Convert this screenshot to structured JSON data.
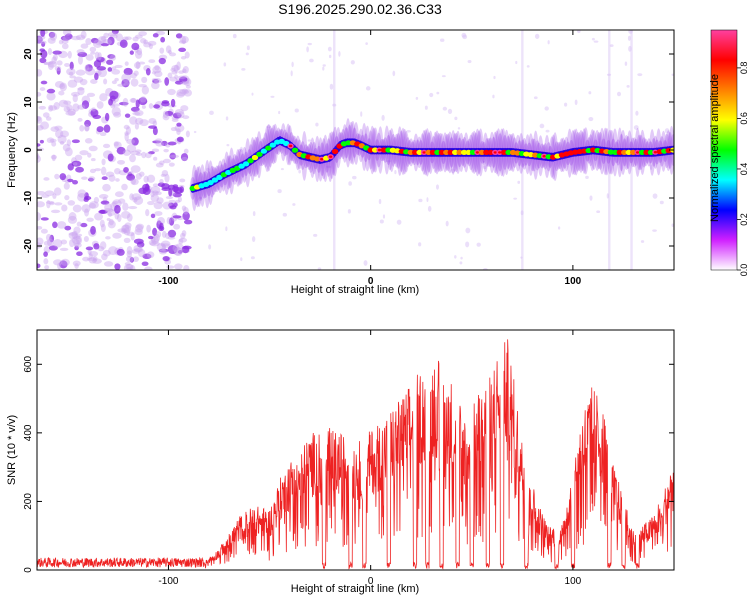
{
  "title": "S196.2025.290.02.36.C33",
  "chart_data": [
    {
      "type": "heatmap",
      "name": "spectrogram",
      "xlabel": "Height of straight line (km)",
      "ylabel": "Frequency (Hz)",
      "xlim": [
        -165,
        150
      ],
      "ylim": [
        -25,
        25
      ],
      "xticks": [
        -100,
        0,
        100
      ],
      "xtick_labels": [
        "-100",
        "0",
        "100"
      ],
      "yticks": [
        -20,
        -10,
        0,
        10,
        20
      ],
      "ytick_labels": [
        "-20",
        "-10",
        "0",
        "10",
        "20"
      ],
      "colorbar": {
        "label": "Normalized spectral amplitude",
        "range": [
          0,
          0.95
        ],
        "ticks": [
          0.0,
          0.2,
          0.4,
          0.6,
          0.8
        ],
        "tick_labels": [
          "0.0",
          "0.2",
          "0.4",
          "0.6",
          "0.8"
        ],
        "colors": [
          "#ffffff",
          "#d020ff",
          "#0000ff",
          "#00ffff",
          "#00ff00",
          "#ffff00",
          "#ff8000",
          "#ff0000",
          "#ff40a0"
        ]
      },
      "track": {
        "x": [
          -88,
          -80,
          -72,
          -62,
          -52,
          -45,
          -40,
          -35,
          -30,
          -25,
          -20,
          -15,
          -12,
          -8,
          -5,
          0,
          10,
          20,
          30,
          40,
          50,
          60,
          70,
          80,
          90,
          100,
          110,
          120,
          130,
          140,
          150
        ],
        "freq": [
          -8,
          -7,
          -5,
          -3,
          0,
          2,
          1,
          -1,
          -1.5,
          -2,
          -1.5,
          1,
          1.5,
          1.5,
          1,
          0,
          0,
          -0.5,
          -0.5,
          -0.5,
          -0.5,
          -0.5,
          -0.5,
          -1,
          -1.5,
          -0.5,
          0,
          -0.5,
          -0.5,
          -0.5,
          0
        ]
      },
      "noise_region": [
        -165,
        -90
      ]
    },
    {
      "type": "line",
      "name": "snr",
      "xlabel": "Height of straight line (km)",
      "ylabel": "SNR (10 * v/v)",
      "xlim": [
        -165,
        150
      ],
      "ylim": [
        0,
        700
      ],
      "xticks": [
        -100,
        0,
        100
      ],
      "xtick_labels": [
        "-100",
        "0",
        "100"
      ],
      "yticks": [
        0,
        200,
        400,
        600
      ],
      "ytick_labels": [
        "0",
        "200",
        "400",
        "600"
      ],
      "color": "#ee2222",
      "envelope": {
        "x": [
          -165,
          -100,
          -82,
          -75,
          -65,
          -58,
          -50,
          -42,
          -36,
          -30,
          -22,
          -15,
          -5,
          5,
          15,
          25,
          35,
          42,
          48,
          55,
          62,
          68,
          75,
          82,
          88,
          95,
          100,
          105,
          110,
          115,
          120,
          125,
          130,
          138,
          145,
          150
        ],
        "snr": [
          20,
          20,
          25,
          60,
          150,
          180,
          170,
          300,
          320,
          380,
          400,
          380,
          360,
          420,
          480,
          560,
          600,
          500,
          420,
          520,
          600,
          650,
          360,
          200,
          120,
          130,
          300,
          450,
          520,
          450,
          300,
          200,
          110,
          140,
          220,
          320
        ]
      },
      "gaps_x": [
        -23,
        -10,
        -3,
        9,
        22,
        28,
        35,
        43,
        50,
        58,
        65,
        77,
        92,
        100,
        118,
        125,
        132
      ]
    }
  ]
}
